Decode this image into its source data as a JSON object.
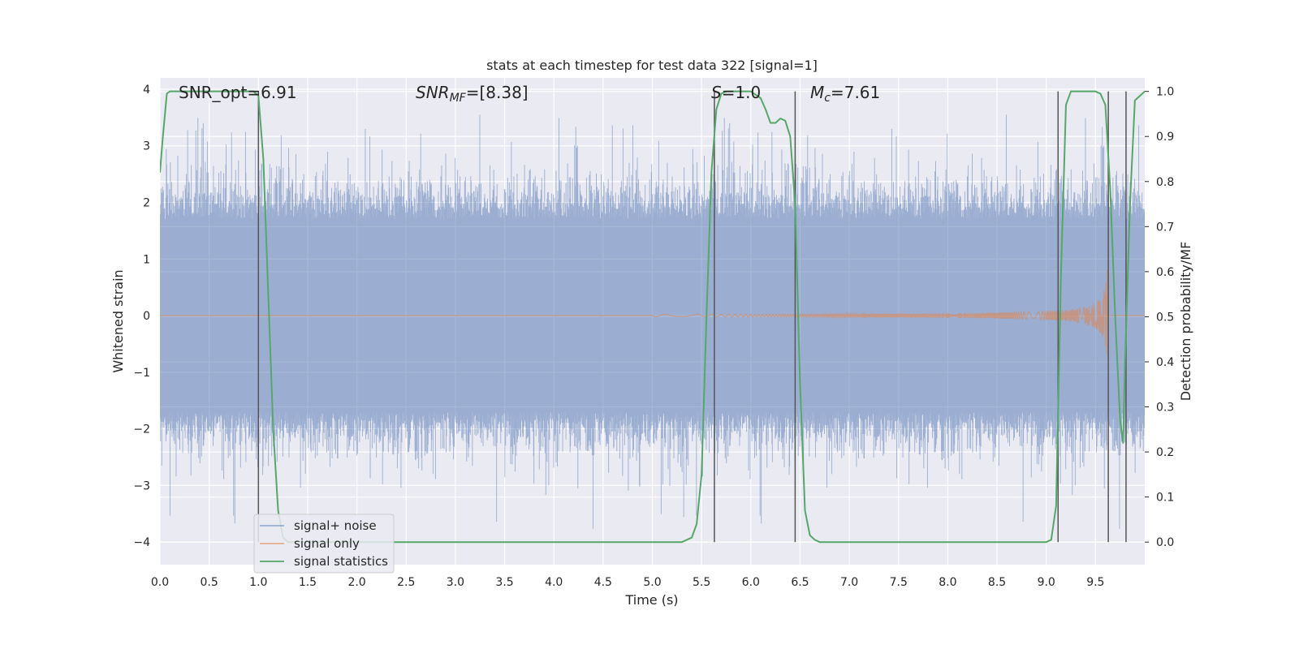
{
  "chart_data": {
    "type": "line",
    "title": "stats at each timestep for test data 322 [signal=1]",
    "xlabel": "Time (s)",
    "ylabel": "Whitened strain",
    "ylabel_right": "Detection probability/MF",
    "xlim": [
      0.0,
      10.0
    ],
    "ylim": [
      -4.4,
      4.2
    ],
    "ylim_right": [
      -0.05,
      1.03
    ],
    "xticks": [
      "0.0",
      "0.5",
      "1.0",
      "1.5",
      "2.0",
      "2.5",
      "3.0",
      "3.5",
      "4.0",
      "4.5",
      "5.0",
      "5.5",
      "6.0",
      "6.5",
      "7.0",
      "7.5",
      "8.0",
      "8.5",
      "9.0",
      "9.5"
    ],
    "yticks": [
      "4",
      "3",
      "2",
      "1",
      "0",
      "−1",
      "−2",
      "−3",
      "−4"
    ],
    "yticks_right": [
      "1.0",
      "0.9",
      "0.8",
      "0.7",
      "0.6",
      "0.5",
      "0.4",
      "0.3",
      "0.2",
      "0.1",
      "0.0"
    ],
    "grid": true,
    "annotations": {
      "snr_opt": "SNR_opt=6.91",
      "snr_mf_base": "SNR",
      "snr_mf_sub": "MF",
      "snr_mf_value": "=[8.38]",
      "s_base": "S",
      "s_value": "=1.0",
      "mc_base": "M",
      "mc_sub": "c",
      "mc_value": "=7.61"
    },
    "legend": {
      "placement": "lower-left",
      "entries": [
        "signal+ noise",
        "signal only",
        "signal statistics"
      ]
    },
    "series": [
      {
        "name": "signal+ noise",
        "color": "#4c72b0",
        "style": "dense noise envelope",
        "typical_amplitude": 1.7,
        "peak_range": [
          -3.8,
          3.55
        ]
      },
      {
        "name": "signal only",
        "color": "#dd8452",
        "style": "chirp",
        "chirp_start": 5.0,
        "merger_time": 9.62,
        "peak_amplitude": 0.9
      },
      {
        "name": "signal statistics",
        "color": "#55a868",
        "axis": "right",
        "x": [
          0.0,
          0.03,
          0.07,
          0.1,
          0.2,
          0.4,
          0.6,
          0.8,
          0.95,
          1.0,
          1.05,
          1.1,
          1.15,
          1.2,
          1.25,
          1.3,
          1.5,
          2.0,
          3.0,
          4.0,
          5.0,
          5.3,
          5.4,
          5.45,
          5.5,
          5.55,
          5.6,
          5.65,
          5.7,
          5.75,
          5.8,
          5.9,
          6.0,
          6.1,
          6.15,
          6.2,
          6.25,
          6.3,
          6.35,
          6.4,
          6.45,
          6.5,
          6.55,
          6.6,
          6.65,
          6.7,
          6.75,
          7.0,
          8.0,
          9.0,
          9.05,
          9.1,
          9.15,
          9.2,
          9.25,
          9.3,
          9.4,
          9.5,
          9.55,
          9.6,
          9.65,
          9.7,
          9.75,
          9.78,
          9.8,
          9.85,
          9.9,
          9.95,
          10.0
        ],
        "y": [
          0.82,
          0.9,
          0.995,
          1.0,
          1.0,
          1.0,
          1.0,
          1.0,
          1.0,
          0.99,
          0.85,
          0.55,
          0.25,
          0.07,
          0.01,
          0.0,
          0.0,
          0.0,
          0.0,
          0.0,
          0.0,
          0.0,
          0.01,
          0.04,
          0.15,
          0.5,
          0.82,
          0.96,
          0.995,
          1.0,
          1.0,
          1.0,
          1.0,
          0.985,
          0.96,
          0.93,
          0.93,
          0.94,
          0.935,
          0.9,
          0.75,
          0.35,
          0.07,
          0.015,
          0.005,
          0.0,
          0.0,
          0.0,
          0.0,
          0.0,
          0.005,
          0.08,
          0.6,
          0.97,
          1.0,
          1.0,
          1.0,
          1.0,
          0.995,
          0.97,
          0.78,
          0.5,
          0.27,
          0.22,
          0.4,
          0.75,
          0.98,
          0.99,
          1.0
        ]
      }
    ],
    "vertical_lines": [
      1.0,
      5.63,
      6.45,
      9.12,
      9.63,
      9.81
    ]
  }
}
